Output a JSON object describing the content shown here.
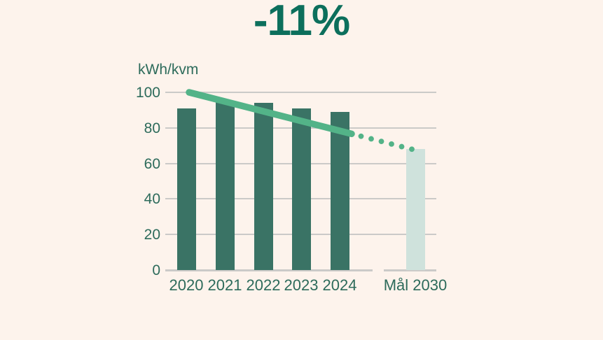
{
  "title": "-11%",
  "chart_data": {
    "type": "bar",
    "title": "-11%",
    "ylabel": "kWh/kvm",
    "xlabel": "",
    "categories": [
      "2020",
      "2021",
      "2022",
      "2023",
      "2024",
      "Mål 2030"
    ],
    "values": [
      91,
      95,
      94,
      91,
      89,
      68
    ],
    "target_index": 5,
    "yticks": [
      0,
      20,
      40,
      60,
      80,
      100
    ],
    "ylim": [
      0,
      100
    ],
    "grid": true,
    "legend_position": "none",
    "trend_line": {
      "style": "solid-then-dotted",
      "start": {
        "category": "2020",
        "value": 100
      },
      "end": {
        "category": "Mål 2030",
        "value": 68
      }
    }
  },
  "colors": {
    "background": "#fdf3ec",
    "bar": "#3a7365",
    "target_bar": "#cfe2dc",
    "trend_line": "#53b388",
    "text": "#2d6b5b",
    "title_text": "#0c6f5c",
    "gridline": "#cbcac8"
  }
}
